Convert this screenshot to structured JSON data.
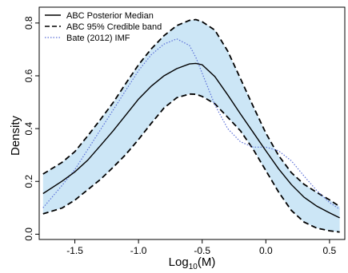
{
  "chart_data": {
    "type": "line",
    "xlabel_base": "Log",
    "xlabel_sub": "10",
    "xlabel_tail": "(M)",
    "ylabel": "Density",
    "xlim": [
      -1.78,
      0.62
    ],
    "ylim": [
      -0.02,
      0.86
    ],
    "x_ticks": [
      -1.5,
      -1.0,
      -0.5,
      0.0,
      0.5
    ],
    "x_tick_labels": [
      "-1.5",
      "-1.0",
      "-0.5",
      "0.0",
      "0.5"
    ],
    "y_ticks": [
      0.0,
      0.2,
      0.4,
      0.6,
      0.8
    ],
    "y_tick_labels": [
      "0.0",
      "0.2",
      "0.4",
      "0.6",
      "0.8"
    ],
    "legend_position": "top-left",
    "legend": [
      {
        "label": "ABC Posterior Median",
        "style": "solid"
      },
      {
        "label": "ABC 95% Credible band",
        "style": "dashed"
      },
      {
        "label": "Bate (2012) IMF",
        "style": "dotted"
      }
    ],
    "colors": {
      "band_fill": "#cce6f6",
      "median": "#000000",
      "band_line": "#000000",
      "imf": "#5b6fd8"
    },
    "x": [
      -1.75,
      -1.6,
      -1.5,
      -1.4,
      -1.3,
      -1.2,
      -1.1,
      -1.0,
      -0.9,
      -0.8,
      -0.7,
      -0.6,
      -0.55,
      -0.5,
      -0.4,
      -0.3,
      -0.2,
      -0.1,
      0.0,
      0.1,
      0.2,
      0.3,
      0.4,
      0.5,
      0.58
    ],
    "series": [
      {
        "name": "ABC Posterior Median",
        "values": [
          0.154,
          0.201,
          0.236,
          0.28,
          0.335,
          0.391,
          0.451,
          0.512,
          0.561,
          0.6,
          0.627,
          0.645,
          0.647,
          0.642,
          0.597,
          0.528,
          0.456,
          0.386,
          0.316,
          0.248,
          0.188,
          0.14,
          0.106,
          0.081,
          0.062
        ]
      },
      {
        "name": "ABC 95% Credible band",
        "bound": "upper",
        "values": [
          0.228,
          0.272,
          0.313,
          0.372,
          0.434,
          0.498,
          0.571,
          0.642,
          0.702,
          0.752,
          0.79,
          0.81,
          0.813,
          0.805,
          0.773,
          0.694,
          0.59,
          0.485,
          0.383,
          0.298,
          0.233,
          0.189,
          0.158,
          0.13,
          0.105
        ]
      },
      {
        "name": "ABC 95% Credible band",
        "bound": "lower",
        "values": [
          0.077,
          0.099,
          0.129,
          0.168,
          0.207,
          0.253,
          0.302,
          0.359,
          0.42,
          0.478,
          0.517,
          0.531,
          0.53,
          0.522,
          0.494,
          0.443,
          0.392,
          0.322,
          0.241,
          0.16,
          0.09,
          0.046,
          0.023,
          0.013,
          0.008
        ]
      },
      {
        "name": "Bate (2012) IMF",
        "values": [
          0.1,
          0.185,
          0.245,
          0.32,
          0.395,
          0.47,
          0.545,
          0.62,
          0.68,
          0.72,
          0.74,
          0.715,
          0.67,
          0.61,
          0.49,
          0.4,
          0.35,
          0.33,
          0.33,
          0.316,
          0.278,
          0.22,
          0.165,
          0.12,
          0.095
        ]
      }
    ]
  }
}
